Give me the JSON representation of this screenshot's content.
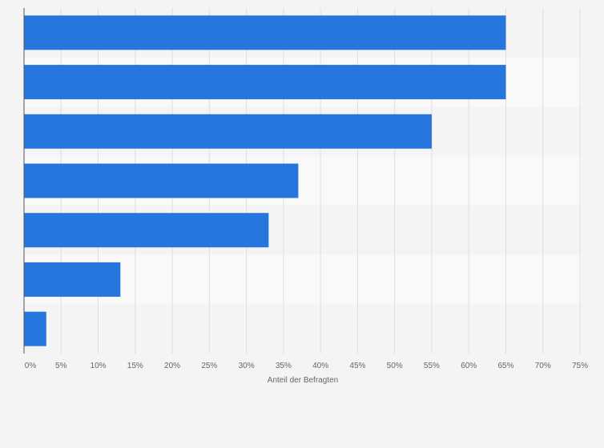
{
  "chart_data": {
    "type": "bar",
    "orientation": "horizontal",
    "categories": [
      "",
      "",
      "",
      "",
      "",
      "",
      ""
    ],
    "values": [
      65,
      65,
      55,
      37,
      33,
      13,
      3
    ],
    "xlabel": "Anteil der Befragten",
    "ylabel": "",
    "xlim": [
      0,
      75
    ],
    "xticks": [
      "0%",
      "5%",
      "10%",
      "15%",
      "20%",
      "25%",
      "30%",
      "35%",
      "40%",
      "45%",
      "50%",
      "55%",
      "60%",
      "65%",
      "70%",
      "75%"
    ],
    "grid": "vertical",
    "colors": {
      "bar": "#2776dd",
      "band_light": "#f9f9f9",
      "band_dark": "#f4f4f4",
      "grid": "#dedede",
      "axis": "#555555",
      "text": "#666666",
      "background": "#f4f4f4"
    }
  }
}
